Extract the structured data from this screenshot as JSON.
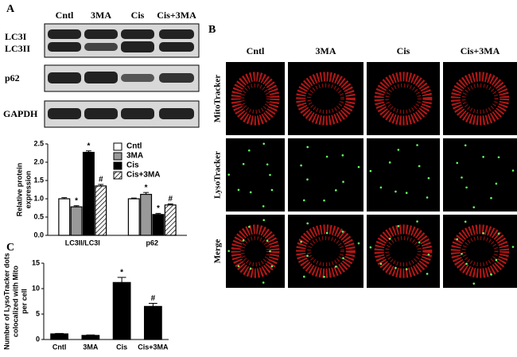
{
  "panels": {
    "a": {
      "label": "A",
      "lanes": [
        "Cntl",
        "3MA",
        "Cis",
        "Cis+3MA"
      ],
      "rows": [
        "LC3I",
        "LC3II",
        "p62",
        "GAPDH"
      ]
    },
    "b": {
      "label": "B",
      "columns": [
        "Cntl",
        "3MA",
        "Cis",
        "Cis+3MA"
      ],
      "rows": [
        "MitoTracker",
        "LysoTracker",
        "Merge"
      ]
    },
    "c": {
      "label": "C"
    }
  },
  "chart_data": [
    {
      "type": "bar",
      "ylabel": [
        "Relative protein",
        "expression"
      ],
      "categories": [
        "LC3II/LC3I",
        "p62"
      ],
      "series": [
        {
          "name": "Cntl",
          "color": "#ffffff",
          "values": [
            1.0,
            1.0
          ],
          "errors": [
            0.03,
            0.02
          ],
          "annotations": [
            null,
            null
          ]
        },
        {
          "name": "3MA",
          "color": "#999999",
          "values": [
            0.78,
            1.12
          ],
          "errors": [
            0.03,
            0.05
          ],
          "annotations": [
            "*",
            "*"
          ]
        },
        {
          "name": "Cis",
          "color": "#000000",
          "values": [
            2.27,
            0.57
          ],
          "errors": [
            0.04,
            0.03
          ],
          "annotations": [
            "*",
            "*"
          ]
        },
        {
          "name": "Cis+3MA",
          "color": "#ffffff",
          "hatch": true,
          "values": [
            1.35,
            0.83
          ],
          "errors": [
            0.04,
            0.03
          ],
          "annotations": [
            "#",
            "#"
          ]
        }
      ],
      "ylim": [
        0,
        2.5
      ],
      "yticks": [
        {
          "value": 0,
          "label": "0.0"
        },
        0.5,
        {
          "value": 1,
          "label": "1.0"
        },
        1.5,
        {
          "value": 2,
          "label": "2.0"
        },
        2.5
      ],
      "legend": "top-right"
    },
    {
      "type": "bar",
      "ylabel": [
        "Number of LysoTracker dots",
        "colocalized with Mito",
        "per cell"
      ],
      "categories": [
        "Cntl",
        "3MA",
        "Cis",
        "Cis+3MA"
      ],
      "values": [
        1.1,
        0.8,
        11.2,
        6.5
      ],
      "errors": [
        0.1,
        0.1,
        1.0,
        0.6
      ],
      "annotations": [
        null,
        null,
        "*",
        "#"
      ],
      "color": "#000000",
      "ylim": [
        0,
        15
      ],
      "yticks": [
        0,
        5,
        10,
        15
      ]
    }
  ]
}
